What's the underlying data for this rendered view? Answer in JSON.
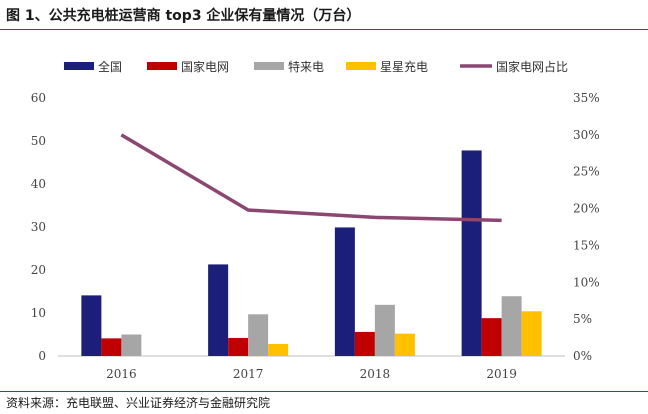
{
  "title": "图 1、公共充电桩运营商 top3 企业保有量情况（万台）",
  "source": "资料来源：充电联盟、兴业证券经济与金融研究院",
  "chart_data": {
    "type": "bar",
    "title": "公共充电桩运营商 top3 企业保有量情况（万台）",
    "categories": [
      "2016",
      "2017",
      "2018",
      "2019"
    ],
    "series": [
      {
        "name": "全国",
        "kind": "bar",
        "axis": "left",
        "color": "#1b1f7a",
        "values": [
          14.1,
          21.3,
          29.9,
          47.8
        ]
      },
      {
        "name": "国家电网",
        "kind": "bar",
        "axis": "left",
        "color": "#c00000",
        "values": [
          4.1,
          4.2,
          5.6,
          8.8
        ]
      },
      {
        "name": "特来电",
        "kind": "bar",
        "axis": "left",
        "color": "#a6a6a6",
        "values": [
          5.0,
          9.7,
          11.9,
          13.9
        ]
      },
      {
        "name": "星星充电",
        "kind": "bar",
        "axis": "left",
        "color": "#ffc000",
        "values": [
          0.0,
          2.8,
          5.2,
          10.4
        ]
      },
      {
        "name": "国家电网占比",
        "kind": "line",
        "axis": "right",
        "color": "#8b4770",
        "values": [
          0.3,
          0.198,
          0.188,
          0.184
        ]
      }
    ],
    "left_axis": {
      "min": 0,
      "max": 60,
      "ticks": [
        "0",
        "10",
        "20",
        "30",
        "40",
        "50",
        "60"
      ]
    },
    "right_axis": {
      "min": 0,
      "max": 0.35,
      "ticks": [
        "0%",
        "5%",
        "10%",
        "15%",
        "20%",
        "25%",
        "30%",
        "35%"
      ]
    },
    "legend_position": "top"
  }
}
